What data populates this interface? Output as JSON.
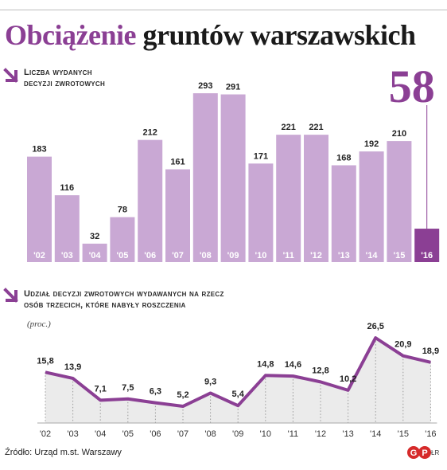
{
  "title": {
    "part1": "Obciążenie",
    "part2": "gruntów warszawskich"
  },
  "colors": {
    "accent": "#8b3f94",
    "bar_light": "#c9a8d4",
    "area_fill": "#ebebeb",
    "line": "#8b3f94"
  },
  "chart_data": [
    {
      "type": "bar",
      "title": "Liczba wydanych decyzji zwrotowych",
      "title_lines": [
        "Liczba wydanych",
        "decyzji zwrotowych"
      ],
      "categories": [
        "'02",
        "'03",
        "'04",
        "'05",
        "'06",
        "'07",
        "'08",
        "'09",
        "'10",
        "'11",
        "'12",
        "'13",
        "'14",
        "'15",
        "'16"
      ],
      "values": [
        183,
        116,
        32,
        78,
        212,
        161,
        293,
        291,
        171,
        221,
        221,
        168,
        192,
        210,
        58
      ],
      "highlight_last": true,
      "ylim": [
        0,
        300
      ]
    },
    {
      "type": "area",
      "title": "Udział decyzji zwrotowych wydawanych na rzecz osób trzecich, które nabyły roszczenia",
      "title_lines": [
        "Udział decyzji zwrotowych wydawanych na rzecz",
        "osób trzecich, które nabyły roszczenia"
      ],
      "unit": "(proc.)",
      "categories": [
        "'02",
        "'03",
        "'04",
        "'05",
        "'06",
        "'07",
        "'08",
        "'09",
        "'10",
        "'11",
        "'12",
        "'13",
        "'14",
        "'15",
        "'16"
      ],
      "values": [
        15.8,
        13.9,
        7.1,
        7.5,
        6.3,
        5.2,
        9.3,
        5.4,
        14.8,
        14.6,
        12.8,
        10.2,
        26.5,
        20.9,
        18.9
      ],
      "value_labels": [
        "15,8",
        "13,9",
        "7,1",
        "7,5",
        "6,3",
        "5,2",
        "9,3",
        "5,4",
        "14,8",
        "14,6",
        "12,8",
        "10,2",
        "26,5",
        "20,9",
        "18,9"
      ],
      "ylim": [
        0,
        30
      ]
    }
  ],
  "source": "Źródło: Urząd m.st. Warszawy",
  "logo": {
    "text": "GP",
    "initials": "ŁR"
  }
}
